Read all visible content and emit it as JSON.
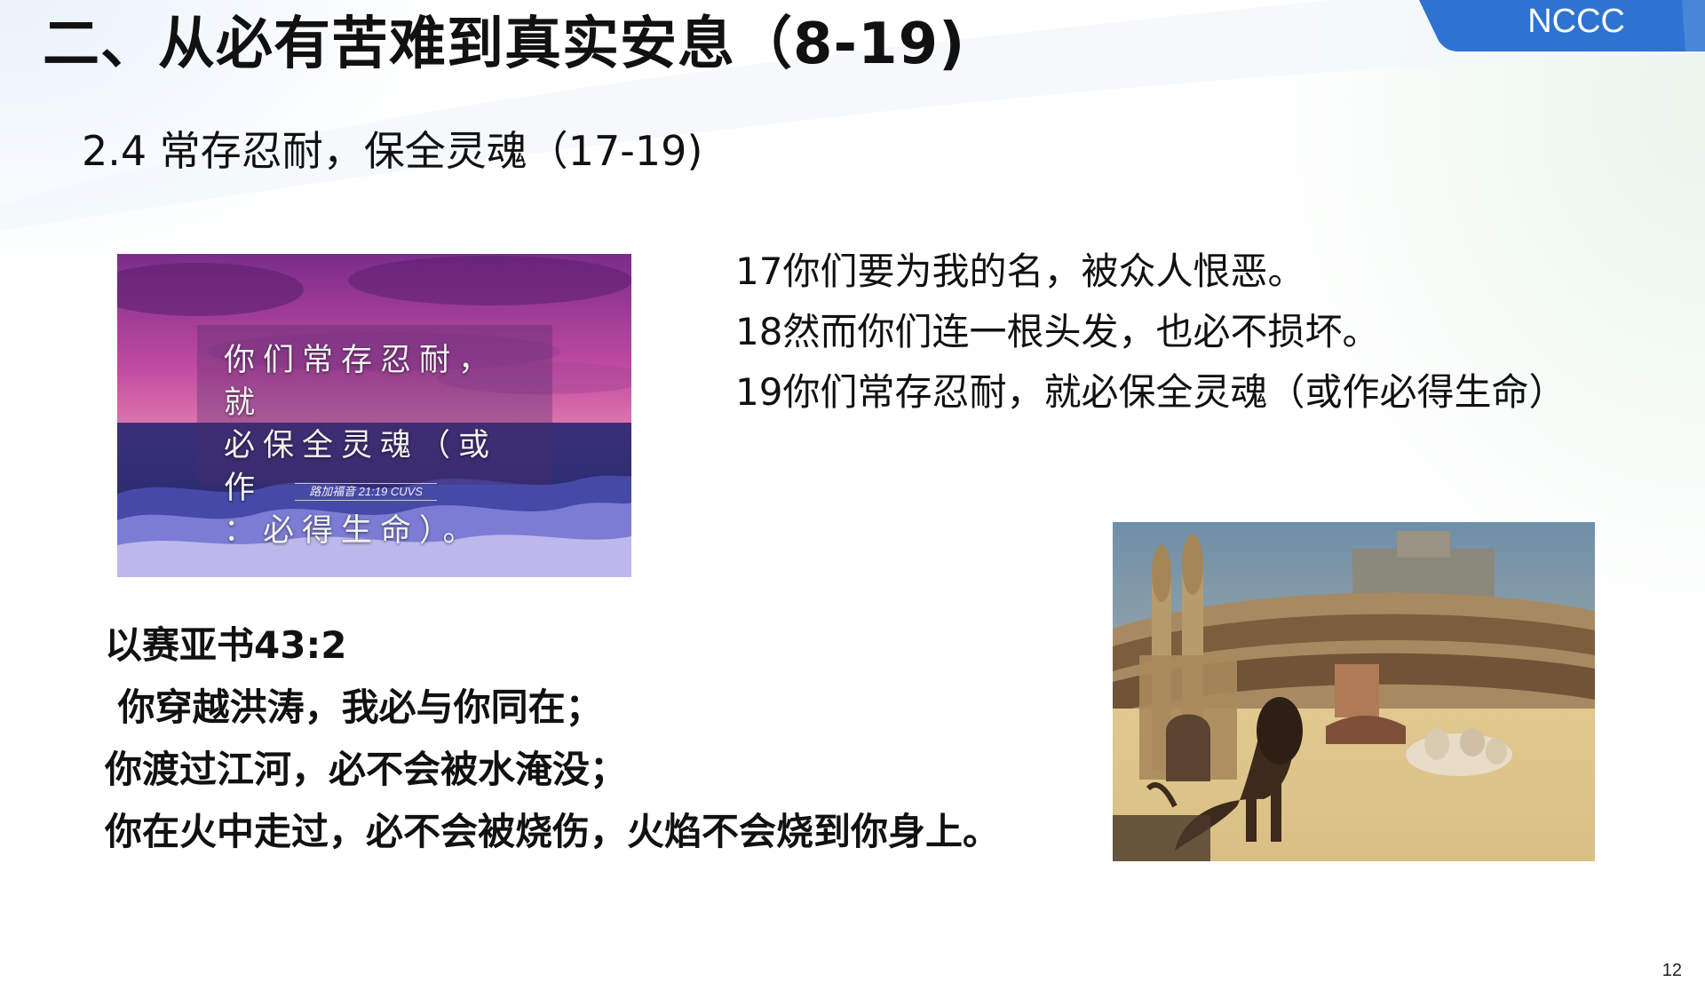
{
  "slide": {
    "title": "二、从必有苦难到真实安息（8-19)",
    "badge": "NCCC",
    "subtitle": "2.4 常存忍耐，保全灵魂（17-19)",
    "page_number": "12"
  },
  "verse_image": {
    "quote_lines": [
      "你们常存忍耐，就",
      "必保全灵魂（或作",
      "：必得生命）。"
    ],
    "reference": "路加福音 21:19 CUVS"
  },
  "verses": [
    "17你们要为我的名，被众人恨恶。",
    "18然而你们连一根头发，也必不损坏。",
    "19你们常存忍耐，就必保全灵魂（或作必得生命）"
  ],
  "isaiah": {
    "heading": "以赛亚书43:2",
    "lines": [
      " 你穿越洪涛，我必与你同在；",
      "你渡过江河，必不会被水淹没；",
      "你在火中走过，必不会被烧伤，火焰不会烧到你身上。"
    ]
  },
  "colors": {
    "badge_blue": "#2f73d0",
    "title_text": "#111111"
  }
}
